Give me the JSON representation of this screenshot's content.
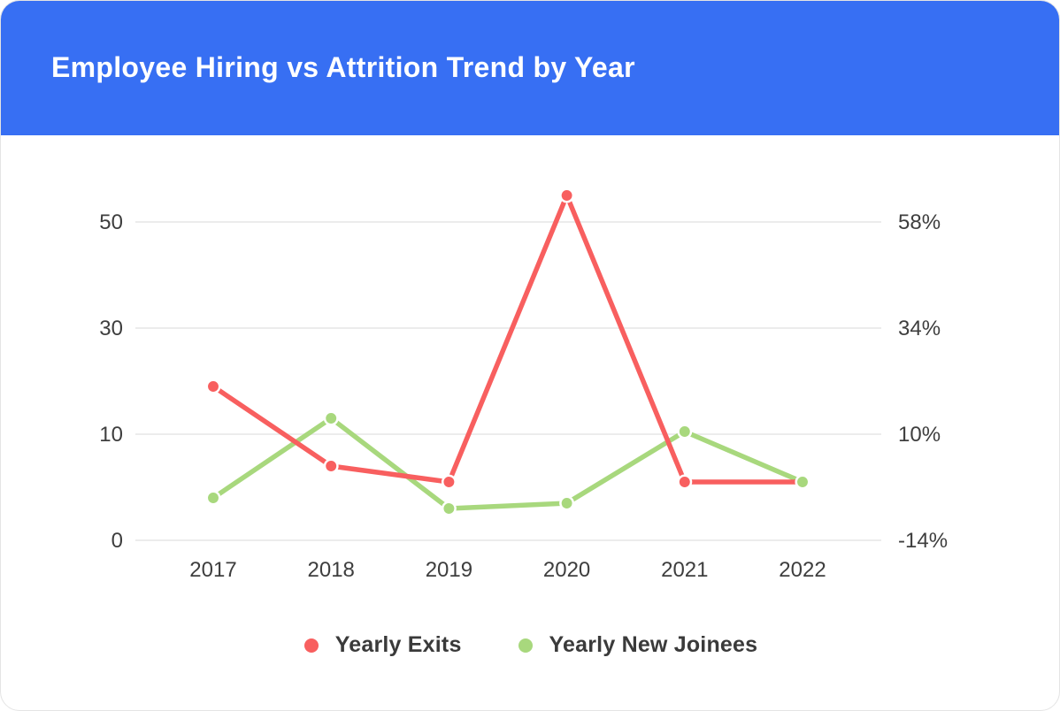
{
  "colors": {
    "header_background": "#376FF3",
    "header_text": "#FFFFFF",
    "gridline": "#ECECEC",
    "axis_label": "#3E3E3E",
    "legend_label": "#3A3A3A"
  },
  "chart_data": {
    "type": "line",
    "title": "Employee Hiring vs Attrition Trend by Year",
    "categories": [
      "2017",
      "2018",
      "2019",
      "2020",
      "2021",
      "2022"
    ],
    "series": [
      {
        "name": "Yearly Exits",
        "color": "#F85F5F",
        "values": [
          19,
          7,
          5.5,
          55,
          5.5,
          5.5
        ]
      },
      {
        "name": "Yearly New Joinees",
        "color": "#A8D87D",
        "values": [
          4,
          13,
          3,
          3.5,
          10.5,
          5.5
        ]
      }
    ],
    "left_axis": {
      "ticks": [
        0,
        10,
        30,
        50
      ]
    },
    "right_axis": {
      "ticks": [
        "-14%",
        "10%",
        "34%",
        "58%"
      ]
    },
    "grid": "horizontal",
    "legend_position": "bottom"
  }
}
